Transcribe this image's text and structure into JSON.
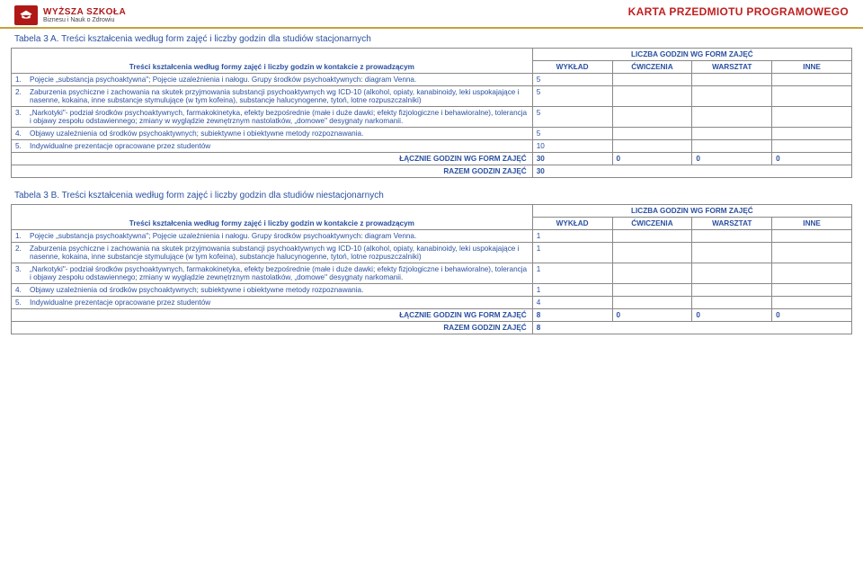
{
  "header": {
    "logo_line1": "WYŻSZA SZKOŁA",
    "logo_line2": "Biznesu i Nauk o Zdrowiu",
    "doc_title": "KARTA PRZEDMIOTU PROGRAMOWEGO"
  },
  "tableA": {
    "caption": "Tabela 3 A. Treści kształcenia według form zajęć i liczby godzin dla studiów stacjonarnych",
    "col_desc": "Treści kształcenia według formy zajęć i liczby godzin w kontakcie z prowadzącym",
    "group_head": "LICZBA GODZIN WG FORM ZAJĘĆ",
    "cols": [
      "WYKŁAD",
      "ĆWICZENIA",
      "WARSZTAT",
      "INNE"
    ],
    "rows": [
      {
        "n": "1.",
        "text": "Pojęcie „substancja psychoaktywna\"; Pojęcie uzależnienia i nałogu.  Grupy  środków psychoaktywnych: diagram Venna.",
        "v": [
          "5",
          "",
          "",
          ""
        ]
      },
      {
        "n": "2.",
        "text": "Zaburzenia psychiczne i zachowania na skutek przyjmowania substancji psychoaktywnych wg ICD-10 (alkohol, opiaty, kanabinoidy,  leki uspokajające i nasenne, kokaina, inne substancje stymulujące (w tym kofeina), substancje halucynogenne, tytoń, lotne rozpuszczalniki)",
        "v": [
          "5",
          "",
          "",
          ""
        ]
      },
      {
        "n": "3.",
        "text": "„Narkotyki\"- podział środków psychoaktywnych, farmakokinetyka, efekty bezpośrednie (małe i duże dawki; efekty fizjologiczne i behawioralne), tolerancja i objawy zespołu odstawiennego; zmiany w wyglądzie zewnętrznym nastolatków,  „domowe\" desygnaty narkomanii.",
        "v": [
          "5",
          "",
          "",
          ""
        ]
      },
      {
        "n": "4.",
        "text": "Objawy uzależnienia od środków psychoaktywnych; subiektywne i obiektywne metody rozpoznawania.",
        "v": [
          "5",
          "",
          "",
          ""
        ]
      },
      {
        "n": "5.",
        "text": "Indywidualne prezentacje opracowane przez studentów",
        "v": [
          "10",
          "",
          "",
          ""
        ]
      }
    ],
    "sum_label": "ŁĄCZNIE GODZIN WG FORM ZAJĘĆ",
    "sum": [
      "30",
      "0",
      "0",
      "0"
    ],
    "total_label": "RAZEM GODZIN ZAJĘĆ",
    "total": "30"
  },
  "tableB": {
    "caption": "Tabela 3 B. Treści kształcenia według form zajęć i liczby godzin dla studiów niestacjonarnych",
    "col_desc": "Treści kształcenia według formy zajęć i liczby godzin w kontakcie z prowadzącym",
    "group_head": "LICZBA GODZIN WG FORM ZAJĘĆ",
    "cols": [
      "WYKŁAD",
      "ĆWICZENIA",
      "WARSZTAT",
      "INNE"
    ],
    "rows": [
      {
        "n": "1.",
        "text": "Pojęcie „substancja psychoaktywna\"; Pojęcie uzależnienia i nałogu.  Grupy  środków psychoaktywnych: diagram Venna.",
        "v": [
          "1",
          "",
          "",
          ""
        ]
      },
      {
        "n": "2.",
        "text": "Zaburzenia psychiczne i zachowania na skutek przyjmowania substancji psychoaktywnych wg ICD-10 (alkohol, opiaty, kanabinoidy,  leki uspokajające i nasenne, kokaina, inne substancje stymulujące (w tym kofeina), substancje halucynogenne, tytoń, lotne rozpuszczalniki)",
        "v": [
          "1",
          "",
          "",
          ""
        ]
      },
      {
        "n": "3.",
        "text": "„Narkotyki\"- podział środków psychoaktywnych, farmakokinetyka, efekty bezpośrednie (małe i duże dawki; efekty fizjologiczne i behawioralne), tolerancja i objawy zespołu odstawiennego; zmiany w wyglądzie zewnętrznym nastolatków,  „domowe\" desygnaty narkomanii.",
        "v": [
          "1",
          "",
          "",
          ""
        ]
      },
      {
        "n": "4.",
        "text": "Objawy uzależnienia od środków psychoaktywnych; subiektywne i obiektywne metody rozpoznawania.",
        "v": [
          "1",
          "",
          "",
          ""
        ]
      },
      {
        "n": "5.",
        "text": "Indywidualne prezentacje opracowane przez studentów",
        "v": [
          "4",
          "",
          "",
          ""
        ]
      }
    ],
    "sum_label": "ŁĄCZNIE GODZIN WG FORM ZAJĘĆ",
    "sum": [
      "8",
      "0",
      "0",
      "0"
    ],
    "total_label": "RAZEM GODZIN ZAJĘĆ",
    "total": "8"
  }
}
